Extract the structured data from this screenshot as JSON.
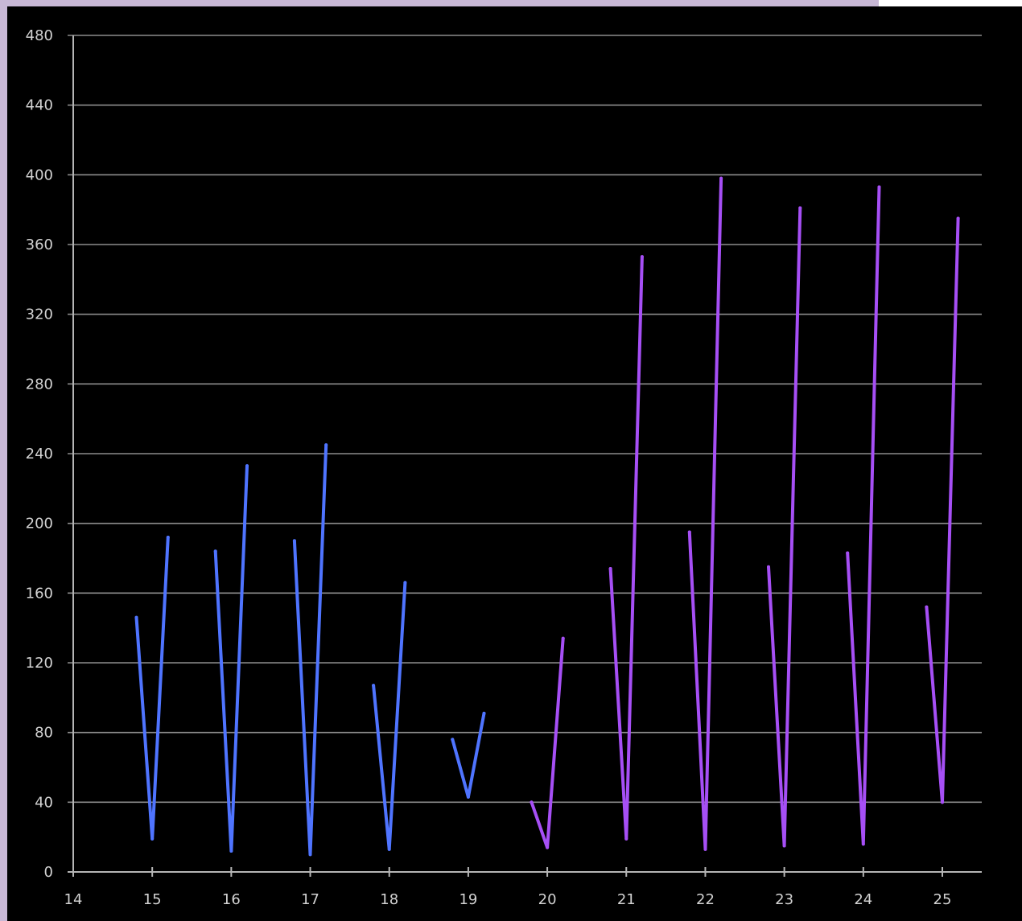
{
  "chart_data": {
    "type": "line",
    "title": "",
    "xlabel": "",
    "ylabel": "",
    "xlim": [
      14,
      25.5
    ],
    "ylim": [
      0,
      480
    ],
    "x_ticks": [
      14,
      15,
      16,
      17,
      18,
      19,
      20,
      21,
      22,
      23,
      24,
      25
    ],
    "y_ticks": [
      0,
      40,
      80,
      120,
      160,
      200,
      240,
      280,
      320,
      360,
      400,
      440,
      480
    ],
    "grid": "horizontal",
    "legend": "none",
    "series": [
      {
        "color": "#4f74ff",
        "points": [
          [
            14.8,
            146
          ],
          [
            15,
            19
          ],
          [
            15.2,
            192
          ]
        ]
      },
      {
        "color": "#4f74ff",
        "points": [
          [
            15.8,
            184
          ],
          [
            16,
            12
          ],
          [
            16.2,
            233
          ]
        ]
      },
      {
        "color": "#4f74ff",
        "points": [
          [
            16.8,
            190
          ],
          [
            17,
            10
          ],
          [
            17.2,
            245
          ]
        ]
      },
      {
        "color": "#4f74ff",
        "points": [
          [
            17.8,
            107
          ],
          [
            18,
            13
          ],
          [
            18.2,
            166
          ]
        ]
      },
      {
        "color": "#4f74ff",
        "points": [
          [
            18.8,
            76
          ],
          [
            19,
            43
          ],
          [
            19.2,
            91
          ]
        ]
      },
      {
        "color": "#a64ff5",
        "points": [
          [
            19.8,
            40
          ],
          [
            20,
            14
          ],
          [
            20.2,
            134
          ]
        ]
      },
      {
        "color": "#a64ff5",
        "points": [
          [
            20.8,
            174
          ],
          [
            21,
            19
          ],
          [
            21.2,
            353
          ]
        ]
      },
      {
        "color": "#a64ff5",
        "points": [
          [
            21.8,
            195
          ],
          [
            22,
            13
          ],
          [
            22.2,
            398
          ]
        ]
      },
      {
        "color": "#a64ff5",
        "points": [
          [
            22.8,
            175
          ],
          [
            23,
            15
          ],
          [
            23.2,
            381
          ]
        ]
      },
      {
        "color": "#a64ff5",
        "points": [
          [
            23.8,
            183
          ],
          [
            24,
            16
          ],
          [
            24.2,
            393
          ]
        ]
      },
      {
        "color": "#a64ff5",
        "points": [
          [
            24.8,
            152
          ],
          [
            25,
            40
          ],
          [
            25.2,
            375
          ]
        ]
      }
    ]
  }
}
